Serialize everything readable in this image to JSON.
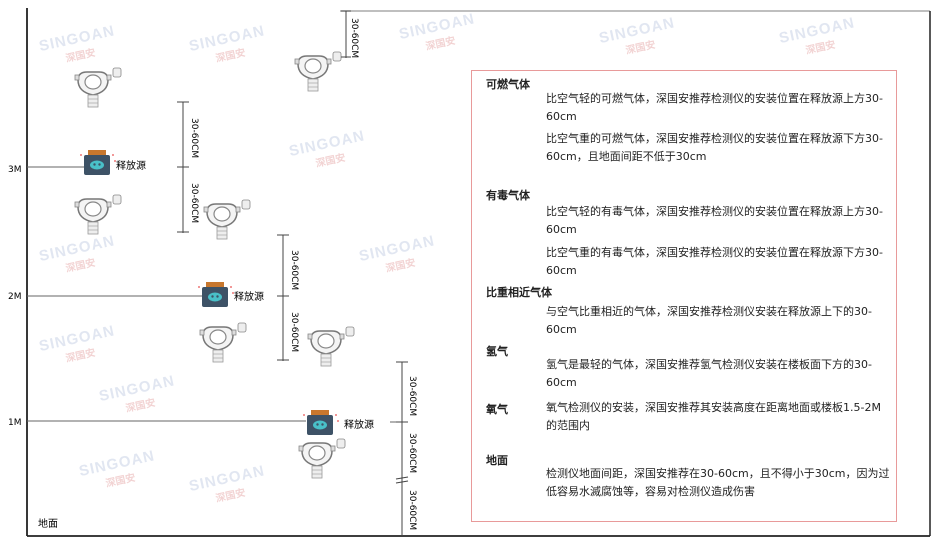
{
  "watermark": {
    "brand": "SINGOAN",
    "cn": "深国安"
  },
  "levels": {
    "m3": "3M",
    "m2": "2M",
    "m1": "1M",
    "ground": "地面"
  },
  "source_label": "释放源",
  "dimension_label": "30-60CM",
  "panel": {
    "sections": [
      {
        "title": "可燃气体",
        "paragraphs": [
          "比空气轻的可燃气体，深国安推荐检测仪的安装位置在释放源上方30-60cm",
          "比空气重的可燃气体，深国安推荐检测仪的安装位置在释放源下方30-60cm，且地面间距不低于30cm"
        ]
      },
      {
        "title": "有毒气体",
        "paragraphs": [
          "比空气轻的有毒气体，深国安推荐检测仪的安装位置在释放源上方30-60cm",
          "比空气重的有毒气体，深国安推荐检测仪的安装位置在释放源下方30-60cm"
        ]
      },
      {
        "title": "比重相近气体",
        "paragraphs": [
          "与空气比重相近的气体，深国安推荐检测仪安装在释放源上下的30-60cm"
        ]
      },
      {
        "title": "氢气",
        "paragraphs": [
          "氢气是最轻的气体，深国安推荐氢气检测仪安装在楼板面下方的30-60cm"
        ]
      },
      {
        "title": "氧气",
        "paragraphs": [
          "氧气检测仪的安装，深国安推荐其安装高度在距离地面或楼板1.5-2M的范围内"
        ]
      },
      {
        "title": "地面",
        "paragraphs": [
          "检测仪地面间距，深国安推荐在30-60cm，且不得小于30cm，因为过低容易水滅腐蚀等，容易对检测仪造成伤害"
        ]
      }
    ]
  },
  "colors": {
    "panel_border": "#e89a9a",
    "source_body": "#3d5266",
    "source_cap": "#c7772e",
    "source_face": "#49c0c8"
  }
}
